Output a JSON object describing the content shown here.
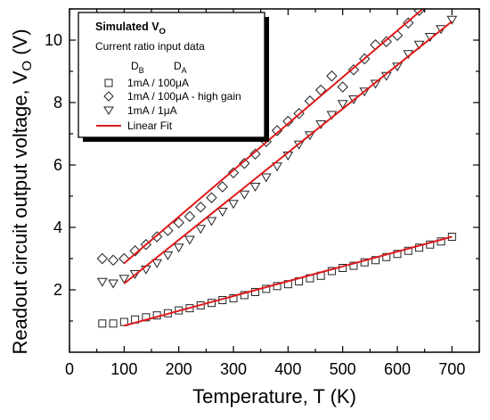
{
  "chart_data": {
    "type": "scatter",
    "xlabel": "Temperature, T (K)",
    "ylabel_main": "Readout circuit output voltage, V",
    "ylabel_sub": "O",
    "ylabel_unit": " (V)",
    "xlim": [
      0,
      750
    ],
    "ylim": [
      0,
      11
    ],
    "xticks": [
      0,
      100,
      200,
      300,
      400,
      500,
      600,
      700
    ],
    "yticks": [
      2,
      4,
      6,
      8,
      10
    ],
    "grid": false,
    "legend": {
      "position": "top-left",
      "title": "Simulated V",
      "title_sub": "O",
      "subtitle": "Current ratio input data",
      "col_b": "D",
      "col_b_sub": "B",
      "col_a": "D",
      "col_a_sub": "A",
      "entries": [
        "1mA / 100μA",
        "1mA / 100μA - high gain",
        "1mA / 1μA",
        "Linear Fit"
      ]
    },
    "series": [
      {
        "name": "1mA / 100μA",
        "marker": "square",
        "x": [
          60,
          80,
          100,
          120,
          140,
          160,
          180,
          200,
          220,
          240,
          260,
          280,
          300,
          320,
          340,
          360,
          380,
          400,
          420,
          440,
          460,
          480,
          500,
          520,
          540,
          560,
          580,
          600,
          620,
          640,
          660,
          680,
          700
        ],
        "y": [
          0.92,
          0.92,
          0.97,
          1.05,
          1.12,
          1.18,
          1.25,
          1.34,
          1.41,
          1.5,
          1.58,
          1.67,
          1.73,
          1.83,
          1.93,
          2.03,
          2.12,
          2.18,
          2.27,
          2.37,
          2.45,
          2.6,
          2.7,
          2.77,
          2.88,
          2.95,
          3.05,
          3.15,
          3.25,
          3.35,
          3.45,
          3.55,
          3.7
        ]
      },
      {
        "name": "1mA / 100μA - high gain",
        "marker": "diamond",
        "x": [
          60,
          80,
          100,
          120,
          140,
          160,
          180,
          200,
          220,
          240,
          260,
          280,
          300,
          320,
          340,
          360,
          380,
          400,
          420,
          440,
          460,
          480,
          500,
          520,
          540,
          560,
          580,
          600,
          620,
          640
        ],
        "y": [
          3.0,
          2.95,
          3.0,
          3.25,
          3.45,
          3.7,
          3.9,
          4.15,
          4.35,
          4.65,
          4.95,
          5.3,
          5.75,
          6.05,
          6.35,
          6.75,
          7.1,
          7.4,
          7.65,
          8.05,
          8.4,
          8.85,
          8.5,
          9.05,
          9.4,
          9.85,
          9.95,
          10.15,
          10.55,
          10.95
        ]
      },
      {
        "name": "1mA / 1μA",
        "marker": "triangle-down",
        "x": [
          60,
          80,
          100,
          120,
          140,
          160,
          180,
          200,
          220,
          240,
          260,
          280,
          300,
          320,
          340,
          360,
          380,
          400,
          420,
          440,
          460,
          480,
          500,
          520,
          540,
          560,
          580,
          600,
          620,
          640,
          660,
          680,
          700
        ],
        "y": [
          2.25,
          2.2,
          2.35,
          2.5,
          2.65,
          2.85,
          3.1,
          3.35,
          3.6,
          3.95,
          4.2,
          4.5,
          4.75,
          5.05,
          5.3,
          5.6,
          5.95,
          6.3,
          6.65,
          6.95,
          7.3,
          7.6,
          7.95,
          8.1,
          8.35,
          8.6,
          8.85,
          9.15,
          9.55,
          9.85,
          10.1,
          10.35,
          10.65
        ]
      }
    ],
    "fits": [
      {
        "name": "Linear Fit",
        "color": "#e0191b",
        "x": [
          100,
          700
        ],
        "y": [
          0.85,
          3.7
        ]
      },
      {
        "name": "Linear Fit",
        "color": "#e0191b",
        "x": [
          100,
          650
        ],
        "y": [
          2.85,
          11.05
        ]
      },
      {
        "name": "Linear Fit",
        "color": "#e0191b",
        "x": [
          100,
          700
        ],
        "y": [
          2.2,
          10.6
        ]
      }
    ],
    "fit_color": "#e0191b",
    "marker_color": "#222222"
  }
}
